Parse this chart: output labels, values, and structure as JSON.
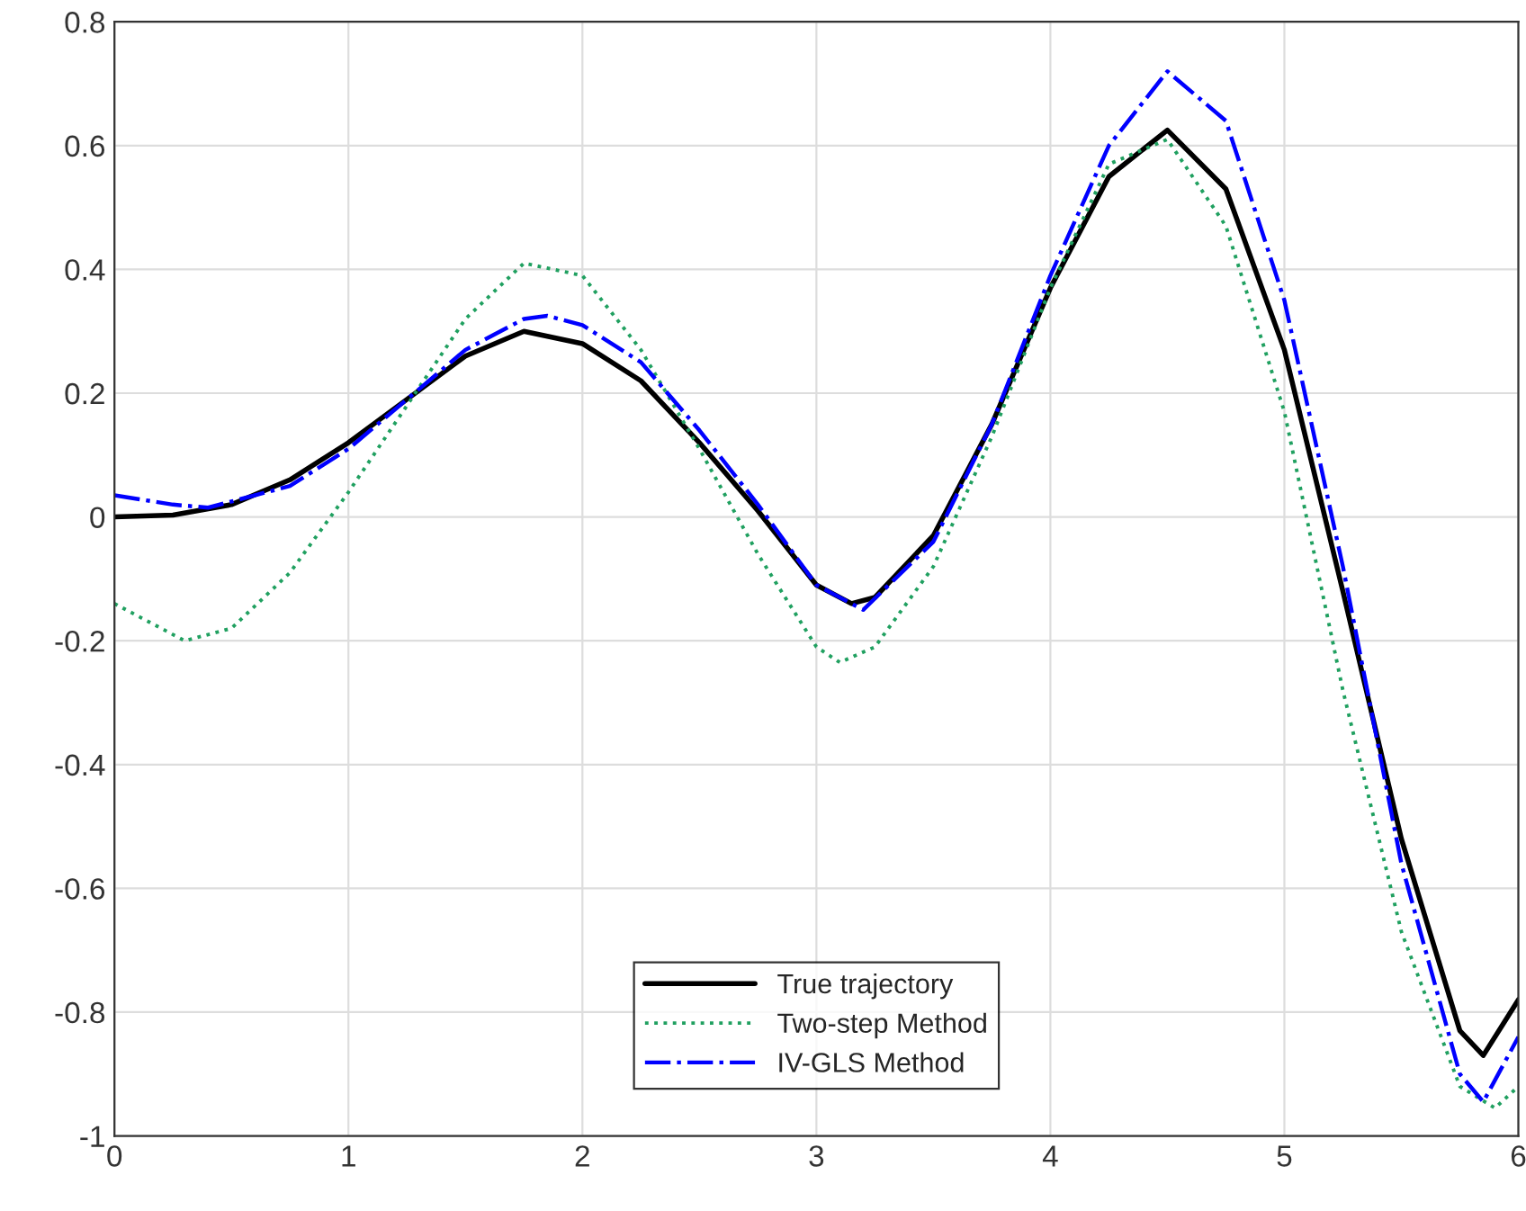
{
  "chart_data": {
    "type": "line",
    "xlim": [
      0,
      6
    ],
    "ylim": [
      -1,
      0.8
    ],
    "xticks": [
      0,
      1,
      2,
      3,
      4,
      5,
      6
    ],
    "yticks": [
      -1,
      -0.8,
      -0.6,
      -0.4,
      -0.2,
      0,
      0.2,
      0.4,
      0.6,
      0.8
    ],
    "grid": true,
    "legend": "bottom",
    "series": [
      {
        "name": "True trajectory",
        "color": "#000000",
        "line_style": "solid",
        "x": [
          0,
          0.25,
          0.5,
          0.75,
          1,
          1.25,
          1.5,
          1.75,
          2,
          2.25,
          2.5,
          2.75,
          3,
          3.15,
          3.25,
          3.5,
          3.75,
          4,
          4.25,
          4.5,
          4.75,
          5,
          5.25,
          5.5,
          5.75,
          5.85,
          6
        ],
        "values": [
          0,
          0.003,
          0.02,
          0.06,
          0.12,
          0.19,
          0.26,
          0.3,
          0.28,
          0.22,
          0.12,
          0.01,
          -0.11,
          -0.14,
          -0.13,
          -0.03,
          0.15,
          0.37,
          0.55,
          0.625,
          0.53,
          0.27,
          -0.12,
          -0.52,
          -0.83,
          -0.87,
          -0.78
        ]
      },
      {
        "name": "Two-step Method",
        "color": "#20a060",
        "line_style": "dotted",
        "x": [
          0,
          0.3,
          0.5,
          0.75,
          1,
          1.25,
          1.5,
          1.75,
          2,
          2.25,
          2.5,
          2.75,
          3,
          3.1,
          3.25,
          3.5,
          3.75,
          4,
          4.25,
          4.5,
          4.75,
          5,
          5.25,
          5.5,
          5.75,
          5.9,
          6
        ],
        "values": [
          -0.14,
          -0.2,
          -0.18,
          -0.09,
          0.04,
          0.18,
          0.32,
          0.41,
          0.39,
          0.27,
          0.11,
          -0.06,
          -0.21,
          -0.235,
          -0.21,
          -0.08,
          0.13,
          0.37,
          0.57,
          0.61,
          0.47,
          0.17,
          -0.28,
          -0.67,
          -0.92,
          -0.955,
          -0.92
        ]
      },
      {
        "name": "IV-GLS Method",
        "color": "#0000ff",
        "line_style": "dashdot",
        "x": [
          0,
          0.25,
          0.4,
          0.75,
          1,
          1.25,
          1.5,
          1.75,
          1.85,
          2,
          2.25,
          2.5,
          2.75,
          3,
          3.2,
          3.5,
          3.75,
          4,
          4.25,
          4.5,
          4.75,
          5,
          5.25,
          5.5,
          5.75,
          5.85,
          6
        ],
        "values": [
          0.035,
          0.02,
          0.015,
          0.05,
          0.11,
          0.19,
          0.27,
          0.32,
          0.325,
          0.31,
          0.25,
          0.14,
          0.02,
          -0.11,
          -0.15,
          -0.04,
          0.15,
          0.39,
          0.6,
          0.72,
          0.64,
          0.35,
          -0.08,
          -0.56,
          -0.9,
          -0.945,
          -0.84
        ]
      }
    ]
  }
}
